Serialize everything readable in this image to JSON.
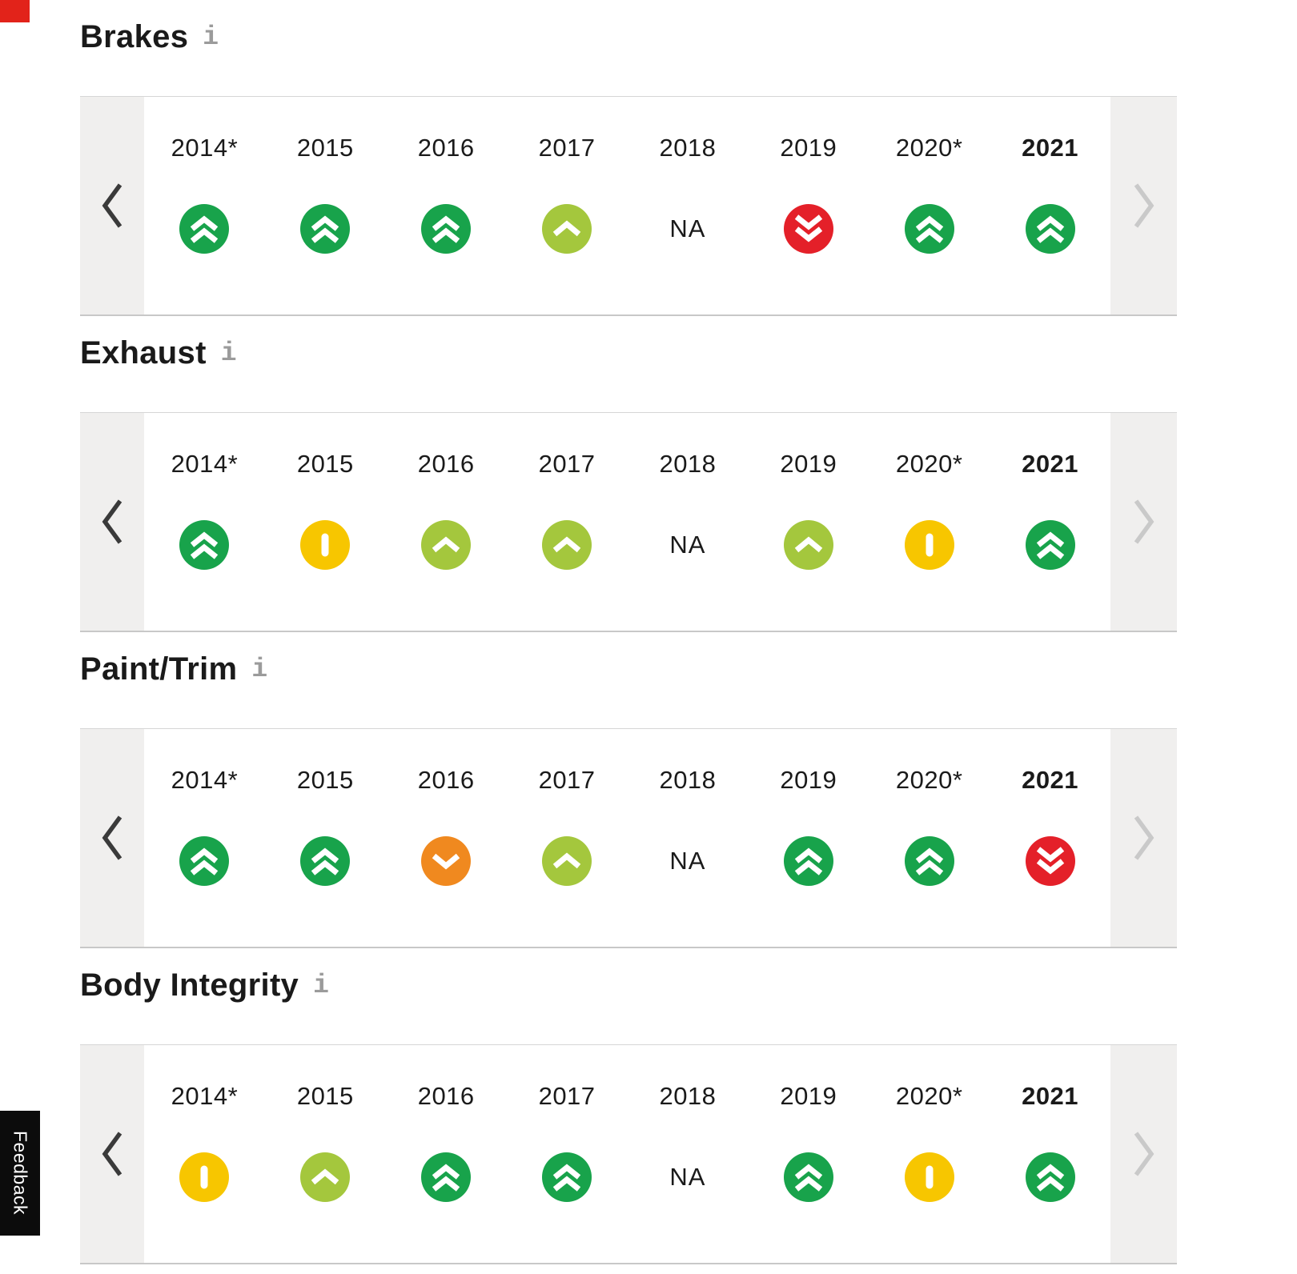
{
  "page": {
    "corner_accent_color": "#e2231a"
  },
  "feedback_tab": {
    "label": "Feedback"
  },
  "info_icon_label": "i",
  "na_label": "NA",
  "years": [
    "2014*",
    "2015",
    "2016",
    "2017",
    "2018",
    "2019",
    "2020*",
    "2021"
  ],
  "bold_year": "2021",
  "rating_scale": {
    "much-better": {
      "color": "#18a34b",
      "glyph": "double-chevron-up"
    },
    "better": {
      "color": "#a4c73d",
      "glyph": "chevron-up"
    },
    "average": {
      "color": "#f7c600",
      "glyph": "vertical-bar"
    },
    "worse": {
      "color": "#f0891f",
      "glyph": "chevron-down"
    },
    "much-worse": {
      "color": "#e42029",
      "glyph": "double-chevron-down"
    }
  },
  "carousel": {
    "prev_color": "#3a3a3a",
    "next_color": "#c9c9c9"
  },
  "sections": [
    {
      "title": "Brakes",
      "ratings": [
        "much-better",
        "much-better",
        "much-better",
        "better",
        "na",
        "much-worse",
        "much-better",
        "much-better"
      ]
    },
    {
      "title": "Exhaust",
      "ratings": [
        "much-better",
        "average",
        "better",
        "better",
        "na",
        "better",
        "average",
        "much-better"
      ]
    },
    {
      "title": "Paint/Trim",
      "ratings": [
        "much-better",
        "much-better",
        "worse",
        "better",
        "na",
        "much-better",
        "much-better",
        "much-worse"
      ]
    },
    {
      "title": "Body Integrity",
      "ratings": [
        "average",
        "better",
        "much-better",
        "much-better",
        "na",
        "much-better",
        "average",
        "much-better"
      ]
    }
  ]
}
